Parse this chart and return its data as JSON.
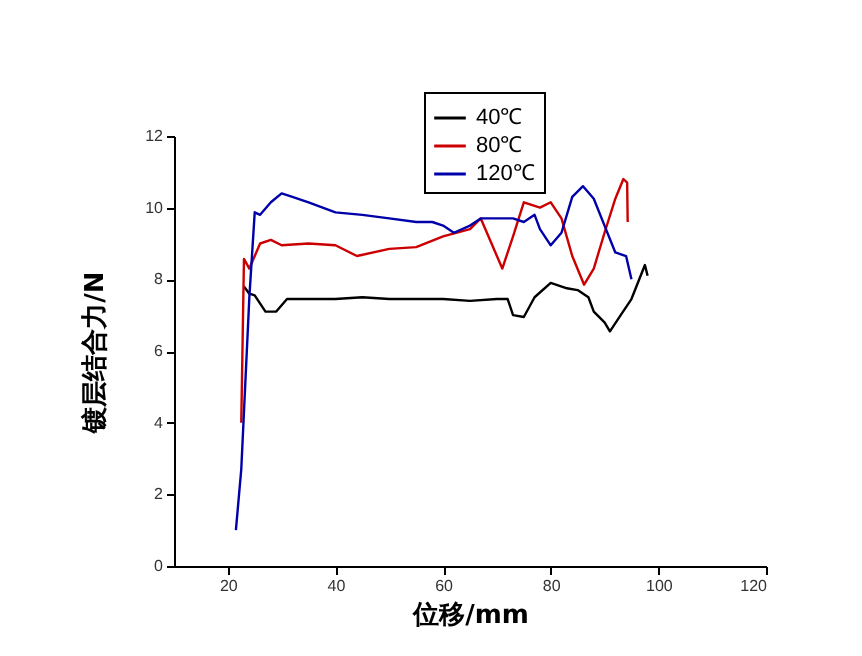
{
  "chart_data": {
    "type": "line",
    "xlabel": "位移/mm",
    "ylabel": "镀层结合力/N",
    "xlim": [
      10,
      120
    ],
    "ylim": [
      0,
      12
    ],
    "xticks": [
      20,
      40,
      60,
      80,
      100,
      120
    ],
    "yticks": [
      0,
      2,
      4,
      6,
      8,
      10,
      12
    ],
    "grid": false,
    "legend": "top",
    "series": [
      {
        "name": "40℃",
        "color": "#000000",
        "x": [
          23,
          24,
          25,
          27,
          29,
          31,
          35,
          40,
          45,
          50,
          55,
          60,
          65,
          70,
          72,
          73,
          75,
          77,
          80,
          83,
          85,
          87,
          88,
          90,
          91,
          93,
          95,
          97.5,
          98
        ],
        "values": [
          7.8,
          7.6,
          7.55,
          7.1,
          7.1,
          7.45,
          7.45,
          7.45,
          7.5,
          7.45,
          7.45,
          7.45,
          7.4,
          7.45,
          7.45,
          7.0,
          6.95,
          7.5,
          7.9,
          7.75,
          7.7,
          7.5,
          7.1,
          6.8,
          6.55,
          7.0,
          7.45,
          8.4,
          8.1
        ]
      },
      {
        "name": "80℃",
        "color": "#cc0000",
        "x": [
          22.5,
          23,
          24,
          26,
          28,
          30,
          35,
          40,
          44,
          50,
          55,
          60,
          65,
          67,
          69,
          71,
          73,
          75,
          78,
          80,
          82,
          84,
          86.2,
          88,
          90,
          92,
          93.5,
          94.2,
          94.3
        ],
        "values": [
          4,
          8.57,
          8.3,
          9.0,
          9.1,
          8.95,
          9.0,
          8.95,
          8.65,
          8.85,
          8.9,
          9.2,
          9.4,
          9.7,
          9.0,
          8.3,
          9.2,
          10.15,
          10.0,
          10.15,
          9.7,
          8.65,
          7.85,
          8.3,
          9.3,
          10.25,
          10.8,
          10.7,
          9.6
        ]
      },
      {
        "name": "120℃",
        "color": "#0000aa",
        "x": [
          21.5,
          22.5,
          24,
          25,
          26,
          28,
          30,
          32,
          35,
          40,
          45,
          50,
          55,
          58,
          60,
          62,
          65,
          67,
          70,
          73,
          75,
          77,
          78,
          80,
          82,
          84,
          86,
          88,
          90,
          92,
          94,
          95
        ],
        "values": [
          1,
          2.7,
          7.5,
          9.87,
          9.8,
          10.15,
          10.4,
          10.3,
          10.15,
          9.87,
          9.8,
          9.7,
          9.6,
          9.6,
          9.5,
          9.3,
          9.5,
          9.7,
          9.7,
          9.7,
          9.6,
          9.8,
          9.4,
          8.95,
          9.3,
          10.3,
          10.6,
          10.25,
          9.5,
          8.75,
          8.65,
          8.0
        ]
      }
    ]
  }
}
